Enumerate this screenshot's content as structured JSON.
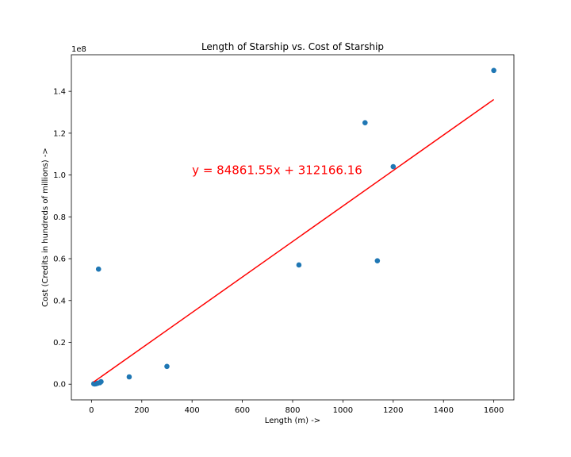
{
  "chart_data": {
    "type": "scatter",
    "title": "Length of Starship vs. Cost of Starship",
    "xlabel": "Length (m) ->",
    "ylabel": "Cost (Credits in hundreds of millions) ->",
    "y_offset_label": "1e8",
    "xlim": [
      -80,
      1680
    ],
    "ylim": [
      -7500000,
      157500000
    ],
    "x_ticks": [
      0,
      200,
      400,
      600,
      800,
      1000,
      1200,
      1400,
      1600
    ],
    "y_ticks": [
      0,
      20000000,
      40000000,
      60000000,
      80000000,
      100000000,
      120000000,
      140000000
    ],
    "y_tick_labels": [
      "0.0",
      "0.2",
      "0.4",
      "0.6",
      "0.8",
      "1.0",
      "1.2",
      "1.4"
    ],
    "grid": false,
    "legend": "none",
    "point_color": "#1f77b4",
    "line_color": "#ff0000",
    "annotation": {
      "text": "y = 84861.55x + 312166.16",
      "x": 400,
      "y": 100000000,
      "color": "#ff0000"
    },
    "fit": {
      "slope": 84861.55,
      "intercept": 312166.16,
      "x_range": [
        9,
        1600
      ]
    },
    "series": [
      {
        "x": [
          9,
          12,
          15,
          17,
          20,
          25,
          28,
          33,
          38,
          150,
          300,
          825,
          1088,
          1137,
          1200,
          1600
        ],
        "y": [
          200000,
          100000,
          150000,
          250000,
          300000,
          500000,
          55000000,
          700000,
          1200000,
          3500000,
          8500000,
          57000000,
          125000000,
          59000000,
          104000000,
          150000000
        ]
      }
    ]
  }
}
